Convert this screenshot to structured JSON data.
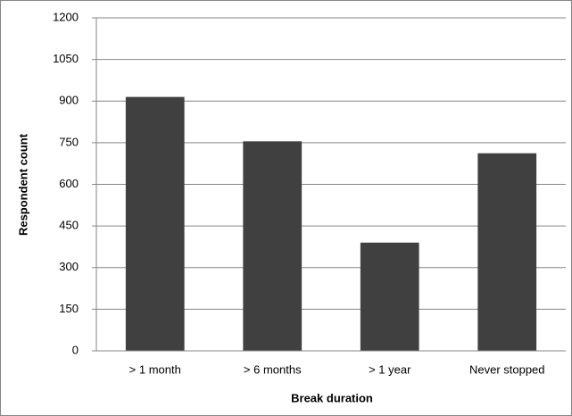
{
  "chart_data": {
    "type": "bar",
    "x_label": "Break duration",
    "y_label": "Respondent count",
    "categories": [
      "> 1 month",
      "> 6 months",
      "> 1 year",
      "Never stopped"
    ],
    "values": [
      915,
      755,
      390,
      712
    ],
    "color": "#404040",
    "ylim": [
      0,
      1200
    ],
    "yticks": [
      0,
      150,
      300,
      450,
      600,
      750,
      900,
      1050,
      1200
    ],
    "grid": true
  }
}
